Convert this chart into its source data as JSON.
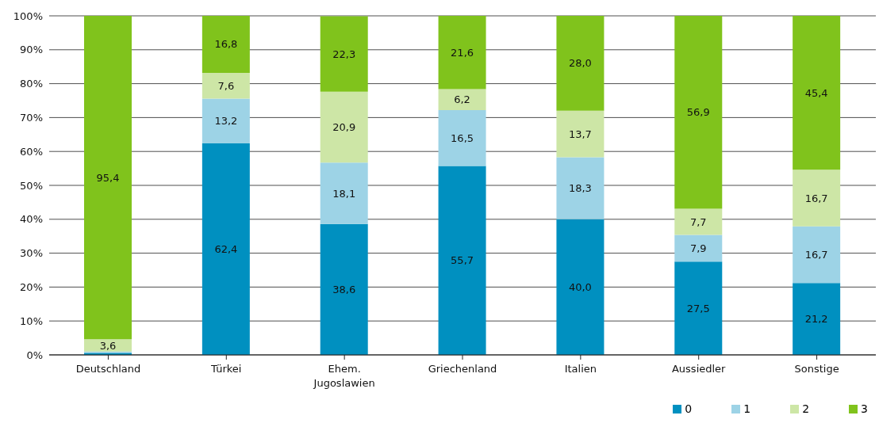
{
  "chart_data": {
    "type": "bar",
    "stacked": true,
    "categories": [
      "Deutschland",
      "Türkei",
      "Ehem. Jugoslawien",
      "Griechenland",
      "Italien",
      "Aussiedler",
      "Sonstige"
    ],
    "series": [
      {
        "name": "0",
        "color": "#0090c0",
        "values": [
          0.6,
          62.4,
          38.6,
          55.7,
          40.0,
          27.5,
          21.2
        ],
        "value_labels": [
          null,
          "62,4",
          "38,6",
          "55,7",
          "40,0",
          "27,5",
          "21,2"
        ]
      },
      {
        "name": "1",
        "color": "#9dd3e6",
        "values": [
          0.4,
          13.2,
          18.1,
          16.5,
          18.3,
          7.9,
          16.7
        ],
        "value_labels": [
          null,
          "13,2",
          "18,1",
          "16,5",
          "18,3",
          "7,9",
          "16,7"
        ]
      },
      {
        "name": "2",
        "color": "#cde6a6",
        "values": [
          3.6,
          7.6,
          20.9,
          6.2,
          13.7,
          7.7,
          16.7
        ],
        "value_labels": [
          "3,6",
          "7,6",
          "20,9",
          "6,2",
          "13,7",
          "7,7",
          "16,7"
        ]
      },
      {
        "name": "3",
        "color": "#80c31c",
        "values": [
          95.4,
          16.8,
          22.3,
          21.6,
          28.0,
          56.9,
          45.4
        ],
        "value_labels": [
          "95,4",
          "16,8",
          "22,3",
          "21,6",
          "28,0",
          "56,9",
          "45,4"
        ]
      }
    ],
    "ylim": [
      0,
      100
    ],
    "yticks": [
      {
        "value": 0,
        "label": "0%"
      },
      {
        "value": 10,
        "label": "10%"
      },
      {
        "value": 20,
        "label": "20%"
      },
      {
        "value": 30,
        "label": "30%"
      },
      {
        "value": 40,
        "label": "40%"
      },
      {
        "value": 50,
        "label": "50%"
      },
      {
        "value": 60,
        "label": "60%"
      },
      {
        "value": 70,
        "label": "70%"
      },
      {
        "value": 80,
        "label": "80%"
      },
      {
        "value": 90,
        "label": "90%"
      },
      {
        "value": 100,
        "label": "100%"
      }
    ],
    "grid": "y",
    "legend": "bottom right"
  }
}
